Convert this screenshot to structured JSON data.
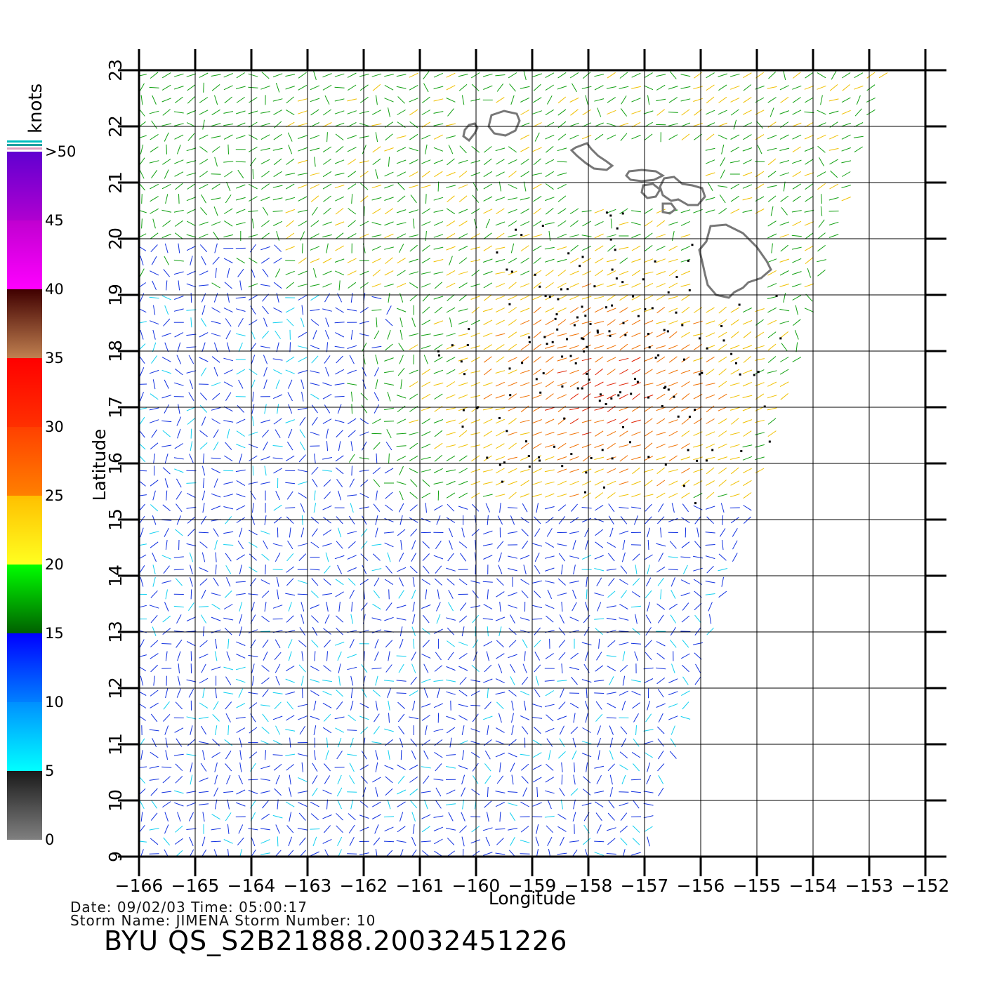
{
  "map": {
    "xlabel": "Longitude",
    "ylabel": "Latitude",
    "lon_ticks": [
      -166,
      -165,
      -164,
      -163,
      -162,
      -161,
      -160,
      -159,
      -158,
      -157,
      -156,
      -155,
      -154,
      -153,
      -152
    ],
    "lat_ticks": [
      9,
      10,
      11,
      12,
      13,
      14,
      15,
      16,
      17,
      18,
      19,
      20,
      21,
      22,
      23
    ],
    "lon_range": [
      -166,
      -152
    ],
    "lat_range": [
      9,
      23
    ],
    "grid": true,
    "coastline_color": "#777777",
    "rain_flag_color": "#000000"
  },
  "colorbar": {
    "unit": "knots",
    "labels": [
      ">50",
      "45",
      "40",
      "35",
      "30",
      "25",
      "20",
      "15",
      "10",
      "5",
      "0"
    ],
    "bands": [
      {
        "from": 0,
        "to": 5,
        "colors": [
          "#808080",
          "#1a1a1a"
        ]
      },
      {
        "from": 5,
        "to": 10,
        "colors": [
          "#00ffff",
          "#0090ff"
        ]
      },
      {
        "from": 10,
        "to": 15,
        "colors": [
          "#0080ff",
          "#0000ff"
        ]
      },
      {
        "from": 15,
        "to": 20,
        "colors": [
          "#006000",
          "#00ff00"
        ]
      },
      {
        "from": 20,
        "to": 25,
        "colors": [
          "#ffff20",
          "#ffc000"
        ]
      },
      {
        "from": 25,
        "to": 30,
        "colors": [
          "#ff8000",
          "#ff4000"
        ]
      },
      {
        "from": 30,
        "to": 35,
        "colors": [
          "#ff3000",
          "#ff0000"
        ]
      },
      {
        "from": 35,
        "to": 40,
        "colors": [
          "#c08050",
          "#400000"
        ]
      },
      {
        "from": 40,
        "to": 45,
        "colors": [
          "#ff00ff",
          "#c000d0"
        ]
      },
      {
        "from": 45,
        "to": 50,
        "colors": [
          "#b000d0",
          "#6000d0"
        ]
      }
    ]
  },
  "meta": {
    "line1": "Date: 09/02/03   Time: 05:00:17",
    "line2": "Storm  Name:  JIMENA    Storm  Number:  10",
    "product": "BYU  QS_S2B21888.20032451226"
  }
}
